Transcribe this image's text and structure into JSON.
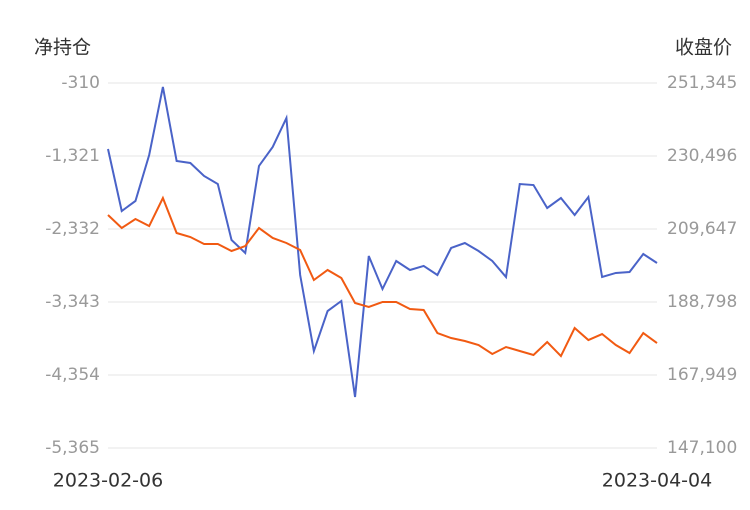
{
  "chart_data": {
    "type": "line",
    "y_label": "净持仓",
    "y2_label": "收盘价",
    "categories": [
      "2023-02-06",
      null,
      null,
      null,
      null,
      null,
      null,
      null,
      null,
      null,
      null,
      null,
      null,
      null,
      null,
      null,
      null,
      null,
      null,
      null,
      null,
      null,
      null,
      null,
      null,
      null,
      null,
      null,
      null,
      null,
      null,
      null,
      null,
      null,
      null,
      null,
      null,
      null,
      null,
      null,
      "2023-04-04"
    ],
    "series": [
      {
        "name": "净持仓",
        "color": "#4a63c8",
        "values": [
          -1224,
          -2083,
          -1944,
          -1307,
          -365,
          -1390,
          -1418,
          -1598,
          -1709,
          -2484,
          -2664,
          -1459,
          -1196,
          -795,
          -2969,
          -4022,
          -3468,
          -3329,
          -4659,
          -2706,
          -3163,
          -2775,
          -2900,
          -2844,
          -2969,
          -2595,
          -2526,
          -2637,
          -2775,
          -2997,
          -1709,
          -1723,
          -2041,
          -1903,
          -2138,
          -1889,
          -2997,
          -2941,
          -2928,
          -2678,
          -2803
        ]
      },
      {
        "name": "收盘价",
        "color": "#f15a12",
        "axis": "y2",
        "values": [
          213650,
          209930,
          212500,
          210500,
          218500,
          208500,
          207360,
          205370,
          205370,
          203370,
          204790,
          209930,
          207080,
          205650,
          203650,
          195080,
          197940,
          195650,
          188510,
          187370,
          188800,
          188800,
          186800,
          186510,
          179940,
          178510,
          177660,
          176510,
          173940,
          175940,
          174800,
          173660,
          177370,
          173370,
          181370,
          177940,
          179650,
          176510,
          174230,
          179940,
          177080
        ]
      }
    ],
    "ylim": [
      -5365,
      -310
    ],
    "yticks": [
      {
        "value": -5365,
        "label": "-5,365"
      },
      {
        "value": -4354,
        "label": "-4,354"
      },
      {
        "value": -3343,
        "label": "-3,343"
      },
      {
        "value": -2332,
        "label": "-2,332"
      },
      {
        "value": -1321,
        "label": "-1,321"
      },
      -310
    ],
    "y2lim": [
      147100,
      251345
    ],
    "y2ticks": [
      {
        "value": 147100,
        "label": "147,100"
      },
      {
        "value": 167949,
        "label": "167,949"
      },
      {
        "value": 188798,
        "label": "188,798"
      },
      {
        "value": 209647,
        "label": "209,647"
      },
      {
        "value": 230496,
        "label": "230,496"
      },
      {
        "value": 251345,
        "label": "251,345"
      }
    ],
    "grid": true
  }
}
